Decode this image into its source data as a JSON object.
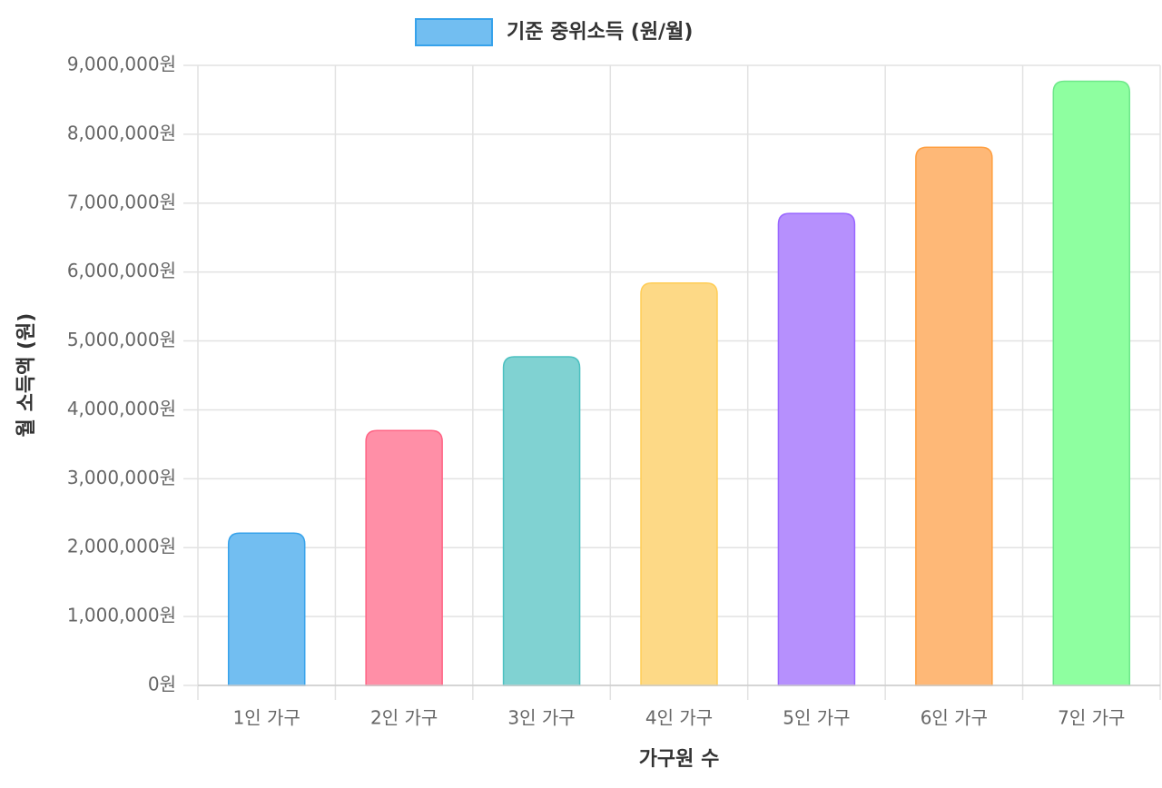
{
  "chart_data": {
    "type": "bar",
    "x_label": "가구원 수",
    "y_label": "월 소득액 (원)",
    "categories": [
      "1인 가구",
      "2인 가구",
      "3인 가구",
      "4인 가구",
      "5인 가구",
      "6인 가구",
      "7인 가구"
    ],
    "series": [
      {
        "name": "기준 중위소득 (원/월)",
        "color": "#72bef1",
        "values": [
          2210000,
          3700000,
          4770000,
          5840000,
          6850000,
          7810000,
          8770000
        ],
        "bar_colors": [
          "#72bef1",
          "#ff8fa7",
          "#80d2d2",
          "#fdd986",
          "#b690fd",
          "#feb877",
          "#8effa0"
        ],
        "border_colors": [
          "#36a2eb",
          "#ff6384",
          "#4bc0c0",
          "#ffcd56",
          "#9966ff",
          "#ff9f40",
          "#6ee88a"
        ]
      }
    ],
    "ylim": [
      0,
      9000000
    ],
    "yticks": [
      {
        "value": 0,
        "label": "0원"
      },
      {
        "value": 1000000,
        "label": "1,000,000원"
      },
      {
        "value": 2000000,
        "label": "2,000,000원"
      },
      {
        "value": 3000000,
        "label": "3,000,000원"
      },
      {
        "value": 4000000,
        "label": "4,000,000원"
      },
      {
        "value": 5000000,
        "label": "5,000,000원"
      },
      {
        "value": 6000000,
        "label": "6,000,000원"
      },
      {
        "value": 7000000,
        "label": "7,000,000원"
      },
      {
        "value": 8000000,
        "label": "8,000,000원"
      },
      {
        "value": 9000000,
        "label": "9,000,000원"
      }
    ],
    "grid": true,
    "legend_position": "top"
  }
}
